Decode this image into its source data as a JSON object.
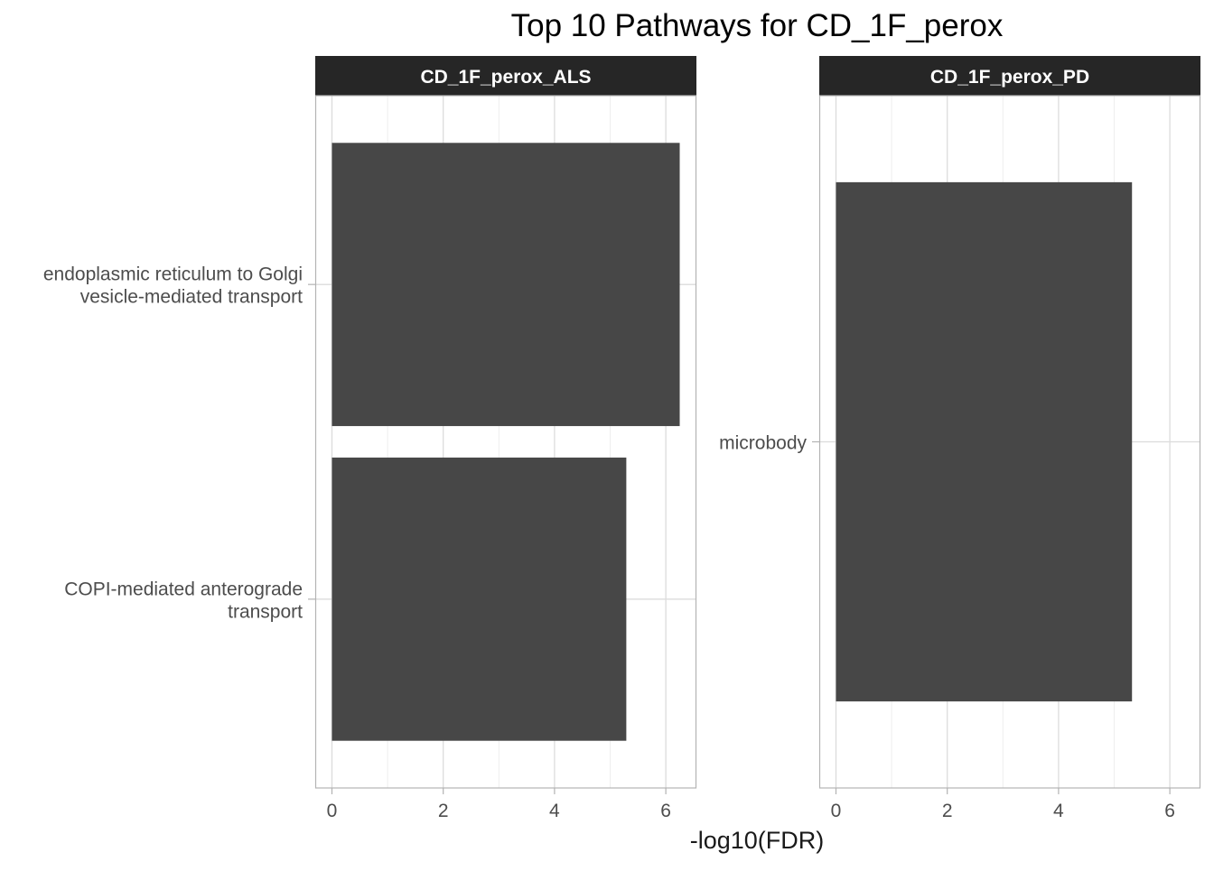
{
  "chart_data": {
    "type": "bar",
    "orientation": "horizontal",
    "title": "Top 10 Pathways for CD_1F_perox",
    "xlabel": "-log10(FDR)",
    "ylabel": "",
    "xlim": [
      -0.3,
      6.55
    ],
    "x_ticks": [
      0,
      2,
      4,
      6
    ],
    "grid": true,
    "bar_color": "#474747",
    "strip_color": "#262626",
    "panels": [
      {
        "name": "CD_1F_perox_ALS",
        "categories": [
          [
            "endoplasmic reticulum to Golgi",
            "vesicle-mediated transport"
          ],
          [
            "COPI-mediated anterograde",
            "transport"
          ]
        ],
        "values": [
          6.25,
          5.29
        ]
      },
      {
        "name": "CD_1F_perox_PD",
        "categories": [
          [
            "microbody"
          ]
        ],
        "values": [
          5.32
        ]
      }
    ]
  }
}
